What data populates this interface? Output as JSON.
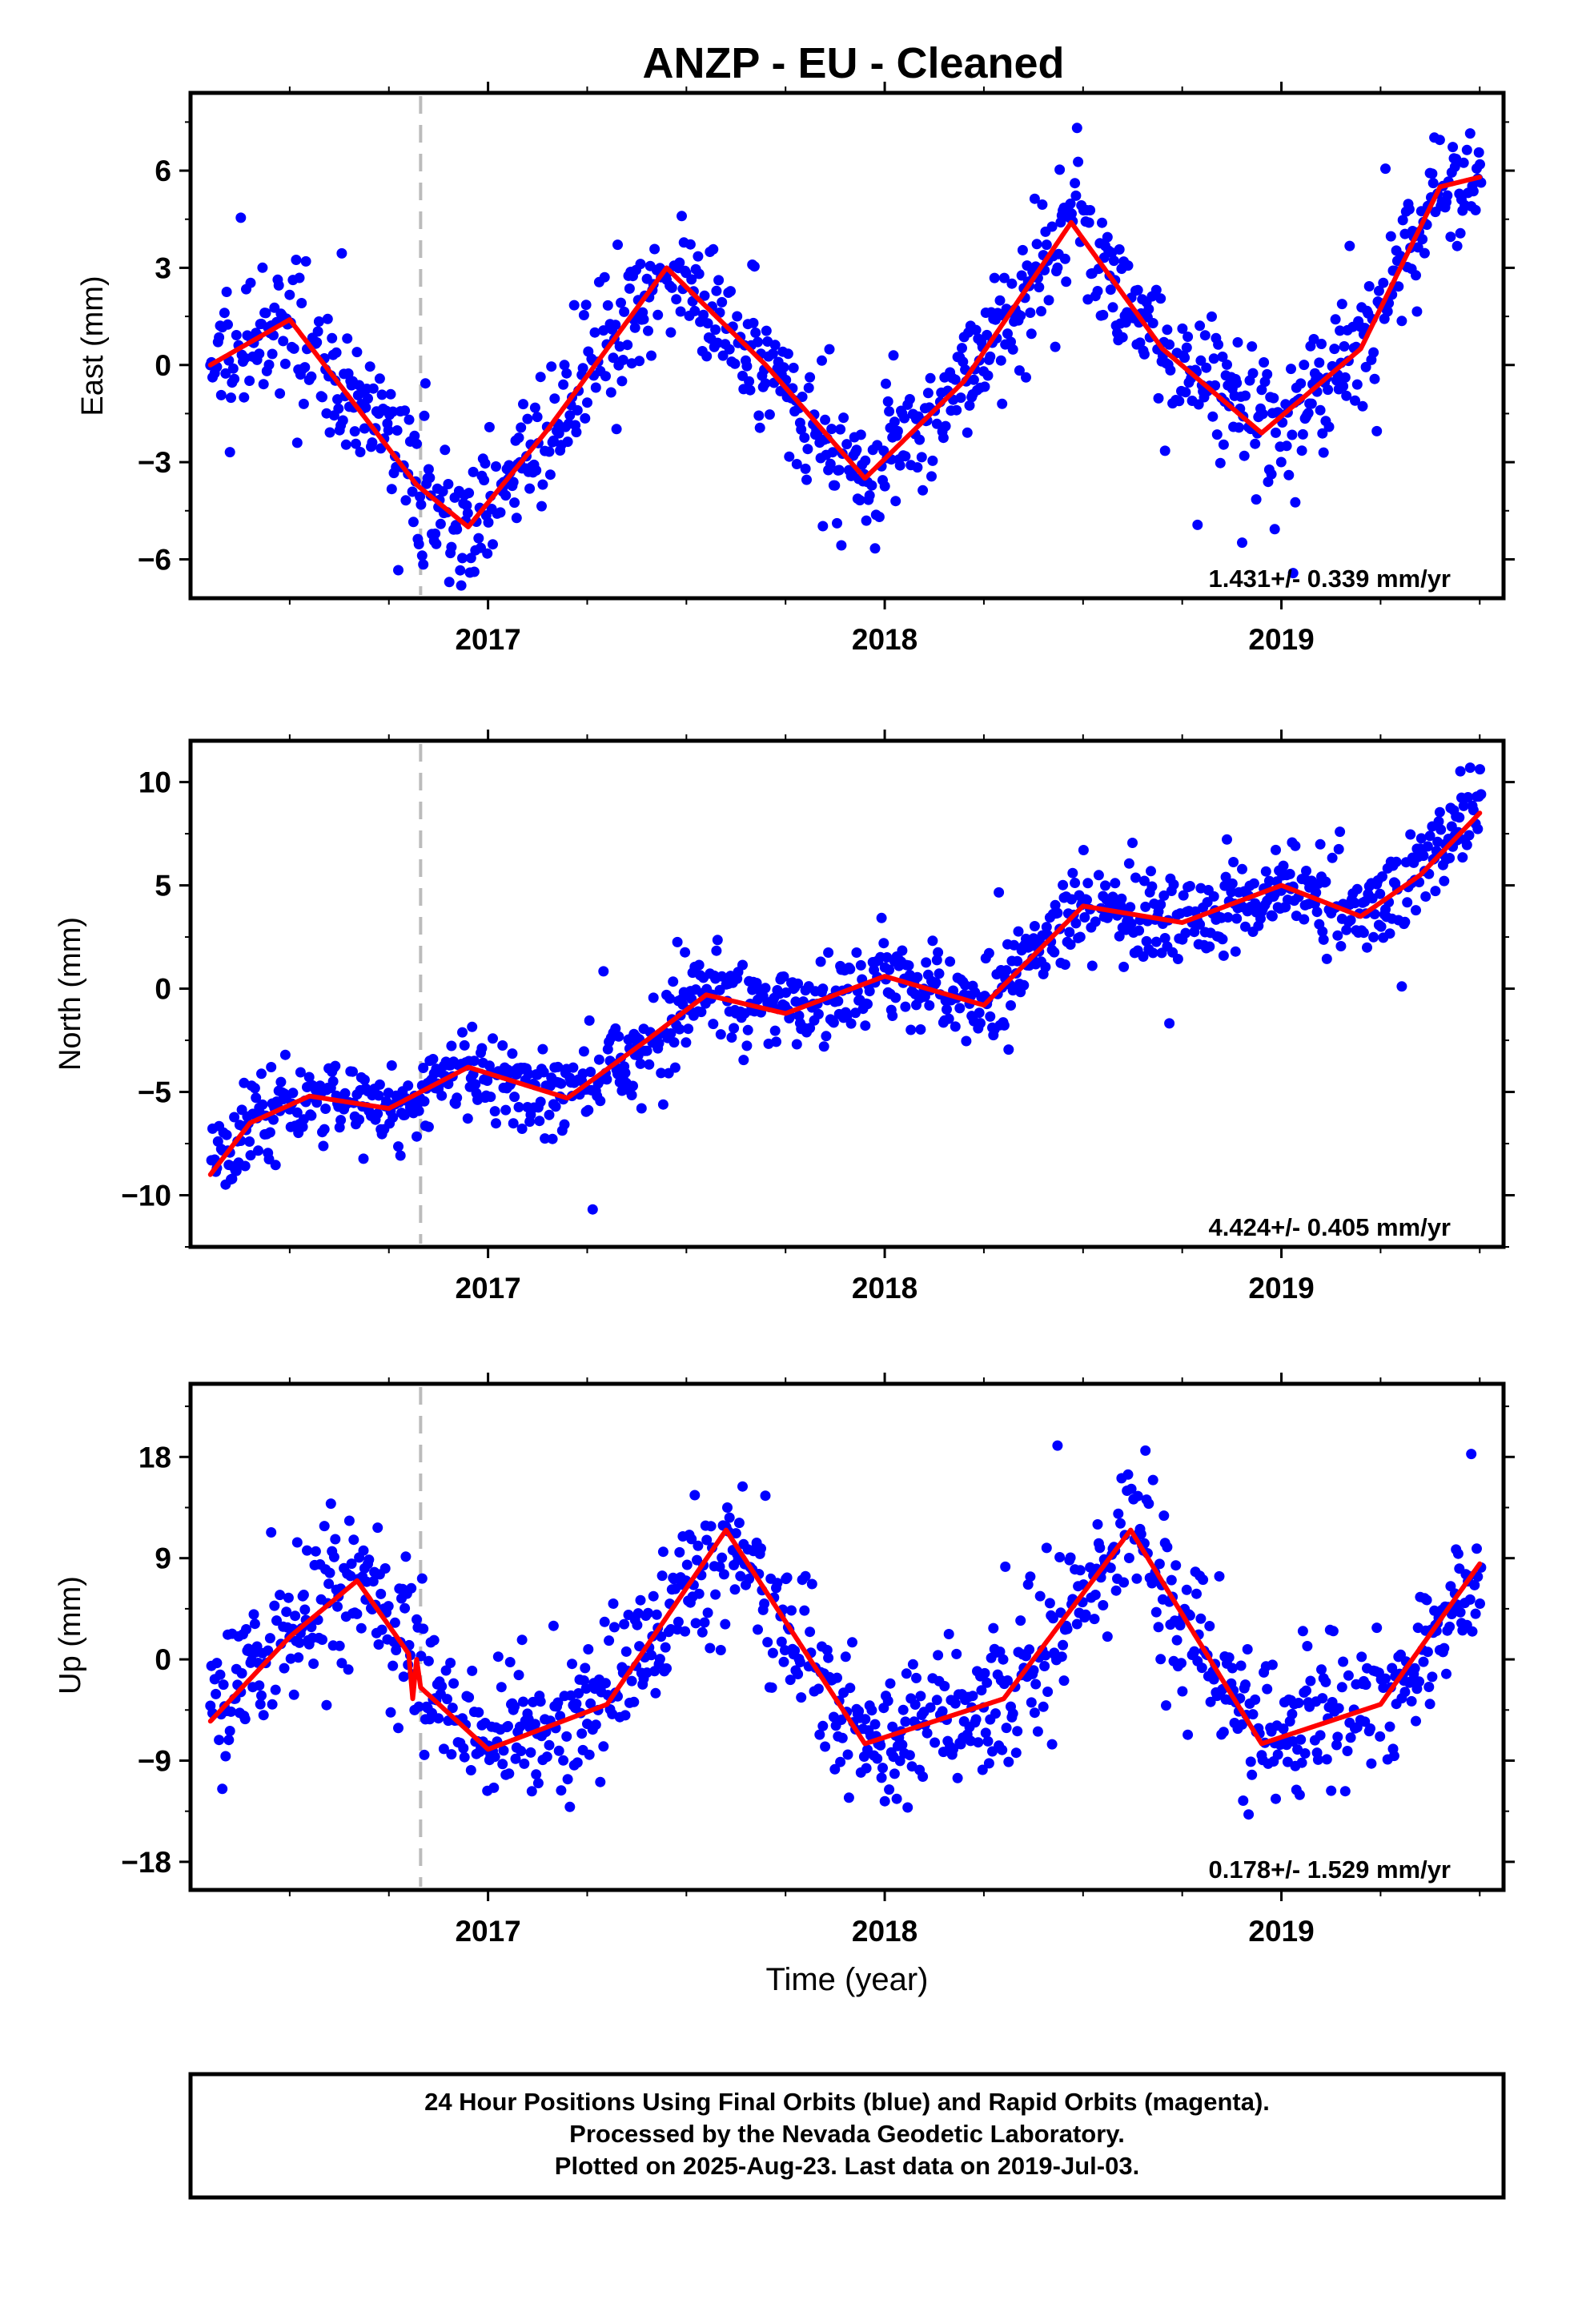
{
  "title": "ANZP  - EU - Cleaned",
  "xlabel": "Time (year)",
  "colors": {
    "data": "#0000ff",
    "fit": "#ff0000",
    "event": "#bbbbbb",
    "frame": "#000000"
  },
  "footer": {
    "line1": "24 Hour Positions Using Final Orbits (blue) and Rapid Orbits (magenta).",
    "line2": "Processed by the Nevada Geodetic Laboratory.",
    "line3": "Plotted on 2025-Aug-23. Last data on 2019-Jul-03."
  },
  "chart_data": [
    {
      "type": "scatter",
      "component": "East",
      "ylabel": "East (mm)",
      "rate_label": "1.431+/- 0.339 mm/yr",
      "xlim": [
        2016.25,
        2019.56
      ],
      "ylim": [
        -7.2,
        8.4
      ],
      "yticks": [
        6,
        3,
        0,
        -3,
        -6
      ],
      "ytick_labels": [
        "6",
        "3",
        "0",
        "−3",
        "−6"
      ],
      "xticks": [
        2017,
        2018,
        2019
      ],
      "xtick_labels": [
        "2017",
        "2018",
        "2019"
      ],
      "event_lines": [
        2016.83
      ],
      "trend": {
        "rate_mm_per_yr": 1.431,
        "offset_mm": -4.1,
        "ref_epoch": 2016.3
      },
      "seasonal": {
        "annual_amp_mm": 4.0,
        "annual_peak": 2016.52
      },
      "scatter_sd_mm": 1.0,
      "fit_curve": {
        "x": [
          2016.3,
          2016.5,
          2016.82,
          2016.95,
          2017.15,
          2017.45,
          2017.7,
          2017.95,
          2018.2,
          2018.47,
          2018.7,
          2018.95,
          2019.2,
          2019.4,
          2019.5
        ],
        "y": [
          0.0,
          1.4,
          -3.7,
          -5.0,
          -2.0,
          3.0,
          0.0,
          -3.5,
          -0.5,
          4.4,
          0.5,
          -2.1,
          0.5,
          5.5,
          5.8
        ]
      },
      "series": [
        {
          "kind": "final_orbits"
        },
        {
          "kind": "fit"
        }
      ]
    },
    {
      "type": "scatter",
      "component": "North",
      "ylabel": "North (mm)",
      "rate_label": "4.424+/- 0.405 mm/yr",
      "xlim": [
        2016.25,
        2019.56
      ],
      "ylim": [
        -12.5,
        12
      ],
      "yticks": [
        10,
        5,
        0,
        -5,
        -10
      ],
      "ytick_labels": [
        "10",
        "5",
        "0",
        "−5",
        "−10"
      ],
      "xticks": [
        2017,
        2018,
        2019
      ],
      "xtick_labels": [
        "2017",
        "2018",
        "2019"
      ],
      "event_lines": [
        2016.83
      ],
      "trend": {
        "rate_mm_per_yr": 4.424,
        "offset_mm": -7.2,
        "ref_epoch": 2016.3
      },
      "seasonal": {
        "annual_amp_mm": 1.0,
        "annual_peak": 2016.95
      },
      "scatter_sd_mm": 1.1,
      "fit_curve": {
        "x": [
          2016.3,
          2016.4,
          2016.55,
          2016.75,
          2016.95,
          2017.2,
          2017.4,
          2017.55,
          2017.75,
          2018.0,
          2018.25,
          2018.5,
          2018.75,
          2019.0,
          2019.2,
          2019.35,
          2019.5
        ],
        "y": [
          -9.0,
          -6.5,
          -5.2,
          -5.8,
          -3.8,
          -5.3,
          -2.5,
          -0.3,
          -1.2,
          0.6,
          -0.8,
          4.0,
          3.2,
          5.0,
          3.5,
          5.5,
          8.5
        ]
      },
      "series": [
        {
          "kind": "final_orbits"
        },
        {
          "kind": "fit"
        }
      ]
    },
    {
      "type": "scatter",
      "component": "Up",
      "ylabel": "Up (mm)",
      "xlabel": "Time (year)",
      "rate_label": "0.178+/- 1.529 mm/yr",
      "xlim": [
        2016.25,
        2019.56
      ],
      "ylim": [
        -20.5,
        24.5
      ],
      "yticks": [
        18,
        9,
        0,
        -9,
        -18
      ],
      "ytick_labels": [
        "18",
        "9",
        "0",
        "−9",
        "−18"
      ],
      "xticks": [
        2017,
        2018,
        2019
      ],
      "xtick_labels": [
        "2017",
        "2018",
        "2019"
      ],
      "event_lines": [
        2016.83
      ],
      "trend": {
        "rate_mm_per_yr": 0.178,
        "offset_mm": 1.5,
        "ref_epoch": 2016.3
      },
      "seasonal": {
        "annual_amp_mm": 9.5,
        "annual_peak": 2016.6
      },
      "scatter_sd_mm": 3.2,
      "fit_curve": {
        "x": [
          2016.3,
          2016.5,
          2016.67,
          2016.8,
          2016.81,
          2016.82,
          2016.83,
          2017.0,
          2017.3,
          2017.6,
          2017.95,
          2018.3,
          2018.62,
          2018.95,
          2019.25,
          2019.5
        ],
        "y": [
          -5.5,
          2.0,
          7.0,
          0.5,
          -3.5,
          0.0,
          -2.5,
          -8.0,
          -4.0,
          11.5,
          -7.5,
          -3.5,
          11.5,
          -7.5,
          -4.0,
          8.5
        ]
      },
      "series": [
        {
          "kind": "final_orbits"
        },
        {
          "kind": "fit"
        }
      ]
    }
  ]
}
